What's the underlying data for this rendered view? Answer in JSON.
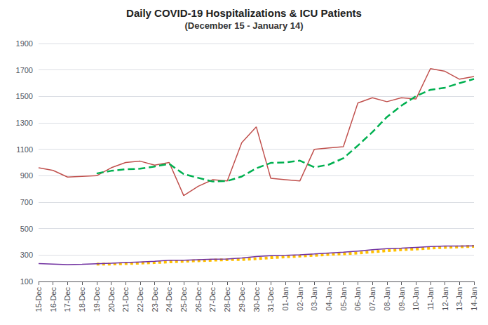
{
  "chart_data": {
    "type": "line",
    "title": "Daily COVID-19 Hospitalizations & ICU Patients",
    "subtitle": "(December 15 - January 14)",
    "categories": [
      "15-Dec",
      "16-Dec",
      "17-Dec",
      "18-Dec",
      "19-Dec",
      "20-Dec",
      "21-Dec",
      "22-Dec",
      "23-Dec",
      "24-Dec",
      "25-Dec",
      "26-Dec",
      "27-Dec",
      "28-Dec",
      "29-Dec",
      "30-Dec",
      "31-Dec",
      "01-Jan",
      "02-Jan",
      "03-Jan",
      "04-Jan",
      "05-Jan",
      "06-Jan",
      "07-Jan",
      "08-Jan",
      "09-Jan",
      "10-Jan",
      "11-Jan",
      "12-Jan",
      "13-Jan",
      "14-Jan"
    ],
    "series": [
      {
        "color": "#ffc000",
        "line_style": "dotted",
        "values": [
          null,
          null,
          null,
          null,
          232,
          232,
          235,
          239,
          243,
          248,
          253,
          257,
          261,
          265,
          266,
          272,
          280,
          286,
          292,
          298,
          304,
          309,
          315,
          324,
          333,
          340,
          346,
          353,
          358,
          362,
          366
        ]
      },
      {
        "color": "#7030a0",
        "line_style": "solid",
        "values": [
          235,
          232,
          228,
          230,
          234,
          238,
          243,
          248,
          253,
          260,
          260,
          265,
          268,
          270,
          278,
          288,
          295,
          298,
          302,
          308,
          315,
          322,
          330,
          340,
          348,
          352,
          358,
          364,
          368,
          368,
          370
        ]
      },
      {
        "color": "#00b050",
        "line_style": "dashed",
        "values": [
          null,
          null,
          null,
          null,
          917,
          937,
          949,
          953,
          970,
          990,
          912,
          884,
          856,
          860,
          894,
          956,
          997,
          1000,
          1014,
          964,
          984,
          1032,
          1128,
          1230,
          1344,
          1430,
          1502,
          1550,
          1566,
          1600,
          1632
        ]
      },
      {
        "color": "#c0504d",
        "line_style": "solid",
        "values": [
          960,
          940,
          890,
          895,
          900,
          960,
          1000,
          1010,
          980,
          1000,
          750,
          820,
          870,
          860,
          1150,
          1270,
          880,
          870,
          860,
          1100,
          1110,
          1120,
          1450,
          1490,
          1460,
          1490,
          1480,
          1710,
          1690,
          1630,
          1650
        ]
      }
    ],
    "ylim": [
      100,
      1900
    ],
    "yticks": [
      100,
      300,
      500,
      700,
      900,
      1100,
      1300,
      1500,
      1700,
      1900
    ],
    "grid": true
  }
}
